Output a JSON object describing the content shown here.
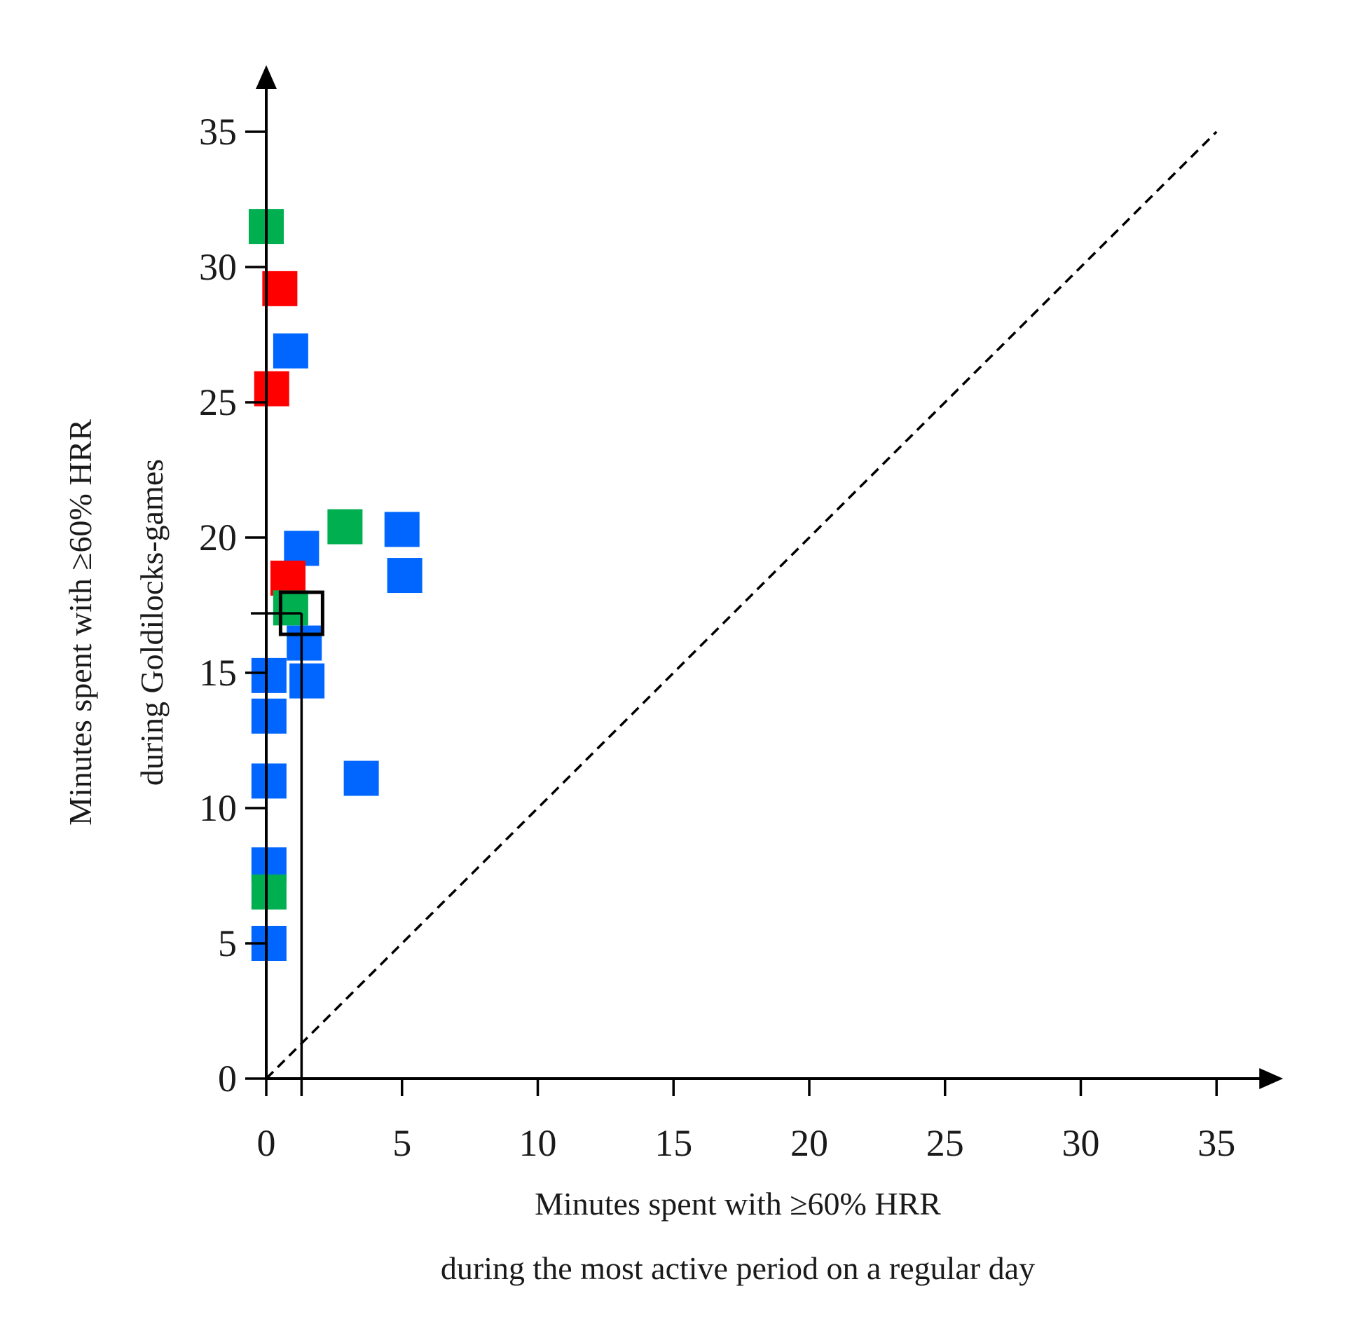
{
  "chart_data": {
    "type": "scatter",
    "xlabel_lines": [
      "Minutes spent with ≥60% HRR",
      "during the most active period on a regular day"
    ],
    "ylabel_lines": [
      "Minutes spent with ≥60% HRR",
      "during Goldilocks-games"
    ],
    "xlim": [
      0,
      35
    ],
    "ylim": [
      0,
      35
    ],
    "xticks": [
      "0",
      "5",
      "10",
      "15",
      "20",
      "25",
      "30",
      "35"
    ],
    "yticks": [
      "0",
      "5",
      "10",
      "15",
      "20",
      "25",
      "30",
      "35"
    ],
    "colors": {
      "blue": "#0066ff",
      "red": "#ff0000",
      "green": "#00b050",
      "axis": "#000000"
    },
    "series": [
      {
        "name": "blue",
        "color": "#0066ff",
        "points": [
          {
            "x": 0.9,
            "y": 26.9
          },
          {
            "x": 1.3,
            "y": 19.6
          },
          {
            "x": 5.0,
            "y": 20.3
          },
          {
            "x": 5.1,
            "y": 18.6
          },
          {
            "x": 1.4,
            "y": 16.1
          },
          {
            "x": 1.5,
            "y": 14.7
          },
          {
            "x": 0.1,
            "y": 14.9
          },
          {
            "x": 0.1,
            "y": 13.4
          },
          {
            "x": 3.5,
            "y": 11.1
          },
          {
            "x": 0.1,
            "y": 11.0
          },
          {
            "x": 0.1,
            "y": 7.9
          },
          {
            "x": 0.1,
            "y": 5.0
          }
        ]
      },
      {
        "name": "red",
        "color": "#ff0000",
        "points": [
          {
            "x": 0.5,
            "y": 29.2
          },
          {
            "x": 0.2,
            "y": 25.5
          },
          {
            "x": 0.8,
            "y": 18.5
          }
        ]
      },
      {
        "name": "green",
        "color": "#00b050",
        "points": [
          {
            "x": 0.0,
            "y": 31.5
          },
          {
            "x": 2.9,
            "y": 20.4
          },
          {
            "x": 0.9,
            "y": 17.4
          },
          {
            "x": 0.1,
            "y": 6.9
          }
        ]
      }
    ],
    "mean_marker": {
      "x": 1.3,
      "y": 17.2
    },
    "reference_line": {
      "type": "identity",
      "from": [
        0,
        0
      ],
      "to": [
        35,
        35
      ],
      "style": "dashed"
    }
  }
}
